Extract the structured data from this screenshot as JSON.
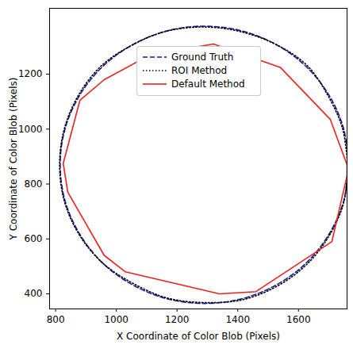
{
  "chart_data": {
    "type": "line",
    "x_label": "X Coordinate of Color Blob (Pixels)",
    "y_label": "Y Coordinate of Color Blob (Pixels)",
    "xlim": [
      780,
      1760
    ],
    "xticks": [
      800,
      1000,
      1200,
      1400,
      1600
    ],
    "ylim": [
      345,
      1440
    ],
    "yticks": [
      400,
      600,
      800,
      1000,
      1200
    ],
    "legend": "upper center",
    "series": [
      {
        "name": "Ground Truth",
        "color": "#1a1a9c",
        "line_style": "dashed",
        "x": [
          1765,
          1749,
          1701,
          1626,
          1528,
          1413,
          1290,
          1167,
          1053,
          954,
          879,
          831,
          815,
          831,
          879,
          954,
          1053,
          1167,
          1290,
          1413,
          1528,
          1626,
          1701,
          1749,
          1765
        ],
        "y": [
          870,
          1001,
          1123,
          1227,
          1307,
          1358,
          1375,
          1358,
          1307,
          1227,
          1123,
          1001,
          870,
          739,
          618,
          513,
          433,
          382,
          365,
          382,
          433,
          513,
          618,
          739,
          870
        ]
      },
      {
        "name": "ROI Method",
        "color": "#000000",
        "line_style": "dotted",
        "x": [
          1762,
          1745,
          1698,
          1630,
          1532,
          1410,
          1288,
          1163,
          1050,
          950,
          876,
          829,
          813,
          828,
          875,
          952,
          1055,
          1170,
          1295,
          1418,
          1533,
          1630,
          1703,
          1750,
          1762
        ],
        "y": [
          872,
          1003,
          1120,
          1230,
          1305,
          1355,
          1372,
          1356,
          1305,
          1230,
          1125,
          1003,
          872,
          740,
          620,
          515,
          438,
          384,
          368,
          379,
          430,
          510,
          615,
          736,
          872
        ]
      },
      {
        "name": "Default Method",
        "color": "#e8221e",
        "line_style": "solid",
        "x": [
          880,
          825,
          840,
          960,
          1030,
          1340,
          1460,
          1710,
          1760,
          1760,
          1705,
          1540,
          1320,
          1110,
          960,
          880
        ],
        "y": [
          1105,
          875,
          770,
          540,
          480,
          400,
          408,
          590,
          830,
          870,
          1035,
          1225,
          1310,
          1270,
          1180,
          1105
        ]
      }
    ]
  }
}
